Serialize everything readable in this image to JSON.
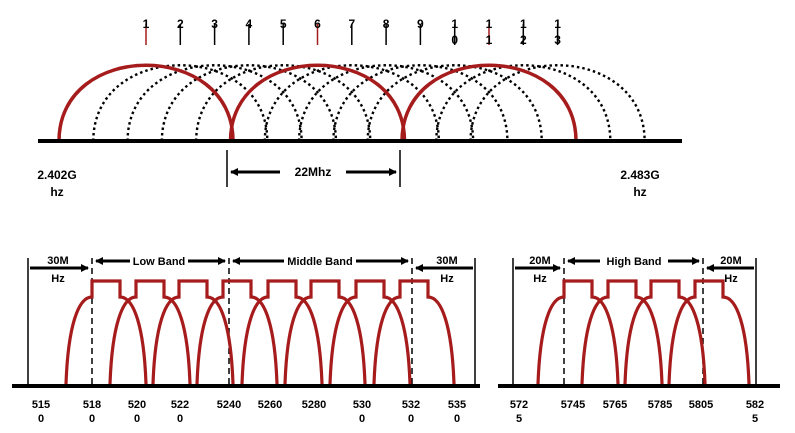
{
  "colors": {
    "highlight": "#a61c1c",
    "line": "#000000",
    "background": "#ffffff"
  },
  "wifi_24": {
    "channels": [
      {
        "lines": [
          "1"
        ],
        "highlight": true
      },
      {
        "lines": [
          "2"
        ],
        "highlight": false
      },
      {
        "lines": [
          "3"
        ],
        "highlight": false
      },
      {
        "lines": [
          "4"
        ],
        "highlight": false
      },
      {
        "lines": [
          "5"
        ],
        "highlight": false
      },
      {
        "lines": [
          "6"
        ],
        "highlight": true
      },
      {
        "lines": [
          "7"
        ],
        "highlight": false
      },
      {
        "lines": [
          "8"
        ],
        "highlight": false
      },
      {
        "lines": [
          "9"
        ],
        "highlight": false
      },
      {
        "lines": [
          "1",
          "0"
        ],
        "highlight": false
      },
      {
        "lines": [
          "1",
          "1"
        ],
        "highlight": true
      },
      {
        "lines": [
          "1",
          "2"
        ],
        "highlight": false
      },
      {
        "lines": [
          "1",
          "3"
        ],
        "highlight": false
      }
    ],
    "left_freq": [
      "2.402G",
      "hz"
    ],
    "right_freq": [
      "2.483G",
      "hz"
    ],
    "width_label": "22Mhz"
  },
  "wifi_5": {
    "group1": {
      "guard_left": [
        "30M",
        "Hz"
      ],
      "guard_right": [
        "30M",
        "Hz"
      ],
      "low_band": "Low Band",
      "middle_band": "Middle Band"
    },
    "group2": {
      "guard_left": [
        "20M",
        "Hz"
      ],
      "guard_right": [
        "20M",
        "Hz"
      ],
      "high_band": "High Band"
    },
    "frequencies": [
      [
        "515",
        "0"
      ],
      [
        "518",
        "0"
      ],
      [
        "520",
        "0"
      ],
      [
        "522",
        "0"
      ],
      [
        "5240"
      ],
      [
        "5260"
      ],
      [
        "5280"
      ],
      [
        "530",
        "0"
      ],
      [
        "532",
        "0"
      ],
      [
        "535",
        "0"
      ],
      [
        "572",
        "5"
      ],
      [
        "5745"
      ],
      [
        "5765"
      ],
      [
        "5785"
      ],
      [
        "5805"
      ],
      [
        "582",
        "5"
      ]
    ]
  }
}
